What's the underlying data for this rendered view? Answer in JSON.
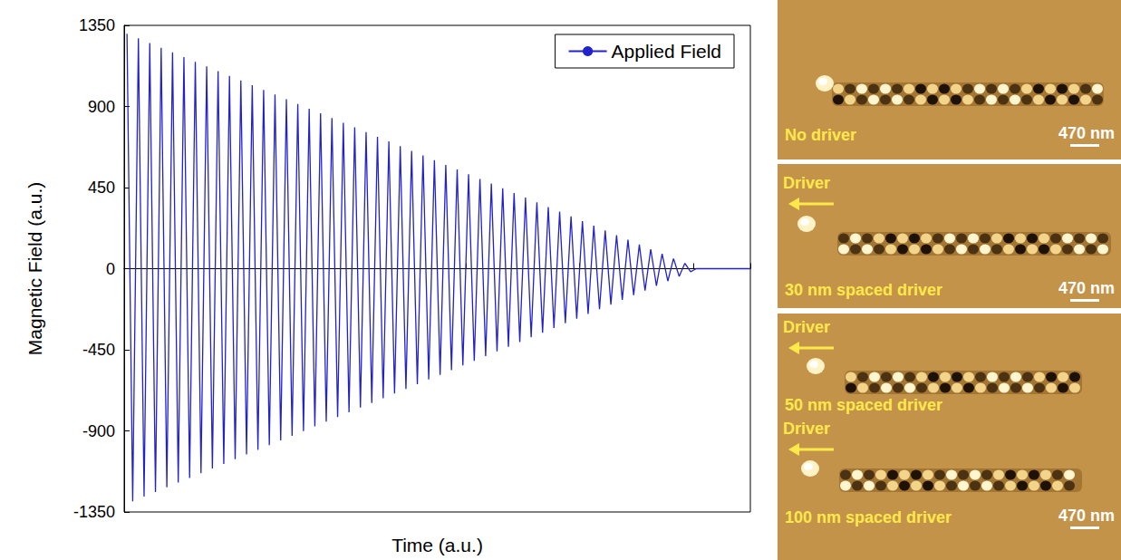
{
  "chart_data": {
    "type": "line",
    "xlabel": "Time (a.u.)",
    "ylabel": "Magnetic Field (a.u.)",
    "x": [
      0.5,
      1.5,
      2.5,
      3.5,
      4.5,
      5.5,
      6.5,
      7.5,
      8.5,
      9.5,
      10.5,
      11.5,
      12.5,
      13.5,
      14.5,
      15.5,
      16.5,
      17.5,
      18.5,
      19.5,
      20.5,
      21.5,
      22.5,
      23.5,
      24.5,
      25.5,
      26.5,
      27.5,
      28.5,
      29.5,
      30.5,
      31.5,
      32.5,
      33.5,
      34.5,
      35.5,
      36.5,
      37.5,
      38.5,
      39.5,
      40.5,
      41.5,
      42.5,
      43.5,
      44.5,
      45.5,
      46.5,
      47.5,
      48.5,
      49.5,
      50.5,
      51.5,
      52.5,
      53.5,
      54.5,
      55.5,
      56.5,
      57.5,
      58.5,
      59.5,
      60.5,
      61.5,
      62.5,
      63.5,
      64.5,
      65.5,
      66.5,
      67.5,
      68.5,
      69.5,
      70.5,
      71.5,
      72.5,
      73.5,
      74.5,
      75.5,
      76.5,
      77.5,
      78.5,
      79.5,
      80.5,
      81.5,
      82.5,
      83.5,
      84.5,
      85.5,
      86.5,
      87.5,
      88.5,
      89.5,
      90.5,
      91.5,
      92.5,
      93.5,
      94.5,
      95.5,
      96.5,
      97.5,
      98.5,
      99.5,
      100.5,
      110
    ],
    "series": [
      {
        "name": "Applied Field",
        "color": "#2222cc",
        "values": [
          1304,
          -1291,
          1278,
          -1265,
          1252,
          -1239,
          1226,
          -1213,
          1200,
          -1187,
          1174,
          -1161,
          1148,
          -1135,
          1122,
          -1109,
          1096,
          -1083,
          1070,
          -1057,
          1044,
          -1031,
          1018,
          -1005,
          992,
          -979,
          966,
          -953,
          940,
          -927,
          914,
          -901,
          888,
          -875,
          862,
          -849,
          836,
          -823,
          810,
          -797,
          784,
          -771,
          758,
          -745,
          732,
          -719,
          706,
          -693,
          680,
          -667,
          654,
          -641,
          628,
          -615,
          602,
          -589,
          576,
          -563,
          550,
          -537,
          524,
          -511,
          498,
          -485,
          472,
          -459,
          446,
          -433,
          420,
          -407,
          394,
          -381,
          368,
          -355,
          342,
          -329,
          316,
          -303,
          290,
          -277,
          264,
          -251,
          238,
          -225,
          212,
          -199,
          186,
          -173,
          160,
          -147,
          134,
          -121,
          108,
          -95,
          82,
          -69,
          56,
          -43,
          30,
          -17,
          0,
          0
        ]
      }
    ],
    "xlim": [
      0,
      110
    ],
    "xticks": [
      0,
      20,
      40,
      60,
      80,
      100
    ],
    "ylim": [
      -1350,
      1350
    ],
    "yticks": [
      -1350,
      -900,
      -450,
      0,
      450,
      900,
      1350
    ],
    "tick_labels": "y",
    "legend": "upper right",
    "grid": false
  },
  "images": [
    {
      "caption": "No driver",
      "scale_bar": "470 nm"
    },
    {
      "driver": "Driver",
      "caption": "30 nm spaced driver",
      "scale_bar": "470 nm"
    },
    {
      "rows": [
        {
          "driver": "Driver",
          "caption": "50 nm spaced driver"
        },
        {
          "driver": "Driver",
          "caption": "100 nm spaced driver"
        }
      ],
      "scale_bar": "470 nm"
    }
  ]
}
